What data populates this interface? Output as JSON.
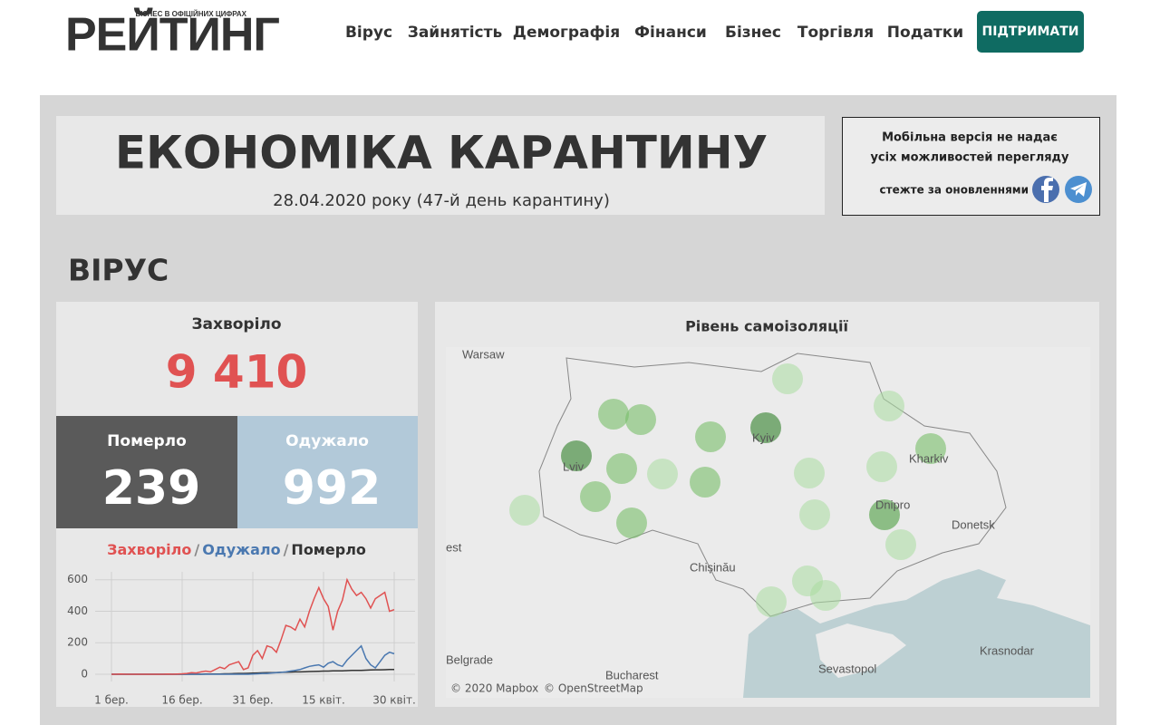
{
  "header": {
    "logo": "РЕЙТИНГ",
    "logo_tagline": "БІЗНЕС В ОФІЦІЙНИХ ЦИФРАХ",
    "nav": [
      "Вірус",
      "Зайнятість",
      "Демографія",
      "Фінанси",
      "Бізнес",
      "Торгівля",
      "Податки"
    ],
    "button": "ПІДТРИМАТИ"
  },
  "banner": {
    "title": "ЕКОНОМІКА КАРАНТИНУ",
    "subtitle": "28.04.2020 року (47-й день карантину)"
  },
  "notice": {
    "lines": [
      "Мобільна версія не надає",
      "усіх можливостей перегляду"
    ],
    "follow": "стежте за оновленнями"
  },
  "section_title": "ВІРУС",
  "stats": {
    "infected_label": "Захворіло",
    "infected": "9 410",
    "deaths_label": "Померло",
    "deaths": "239",
    "recovered_label": "Одужало",
    "recovered": "992"
  },
  "chart_data": {
    "type": "line",
    "legend_separator": "/",
    "categories": [
      "1 бер.",
      null,
      null,
      null,
      null,
      null,
      null,
      null,
      null,
      null,
      null,
      null,
      null,
      null,
      null,
      "16 бер.",
      null,
      null,
      null,
      null,
      null,
      null,
      null,
      null,
      null,
      null,
      null,
      null,
      null,
      null,
      "31 бер.",
      null,
      null,
      null,
      null,
      null,
      null,
      null,
      null,
      null,
      null,
      null,
      null,
      null,
      null,
      "15 квіт.",
      null,
      null,
      null,
      null,
      null,
      null,
      null,
      null,
      null,
      null,
      null,
      null,
      null,
      null,
      "30 квіт."
    ],
    "series": [
      {
        "name": "Захворіло",
        "color": "#e05252",
        "values": [
          0,
          0,
          1,
          0,
          0,
          0,
          0,
          0,
          0,
          0,
          0,
          0,
          1,
          0,
          2,
          3,
          5,
          10,
          8,
          15,
          20,
          15,
          30,
          45,
          35,
          60,
          70,
          80,
          30,
          40,
          120,
          150,
          100,
          180,
          170,
          140,
          220,
          310,
          300,
          280,
          350,
          300,
          400,
          480,
          550,
          480,
          430,
          280,
          400,
          470,
          600,
          540,
          500,
          520,
          480,
          420,
          480,
          500,
          520,
          400,
          410
        ]
      },
      {
        "name": "Одужало",
        "color": "#4a78b0",
        "values": [
          0,
          0,
          0,
          0,
          0,
          0,
          0,
          0,
          0,
          0,
          0,
          0,
          0,
          0,
          0,
          0,
          0,
          0,
          0,
          0,
          0,
          0,
          0,
          0,
          0,
          0,
          0,
          0,
          0,
          0,
          2,
          3,
          5,
          5,
          8,
          10,
          12,
          15,
          20,
          25,
          30,
          40,
          50,
          55,
          60,
          45,
          70,
          80,
          60,
          50,
          90,
          120,
          150,
          180,
          100,
          60,
          40,
          80,
          120,
          140,
          130
        ]
      },
      {
        "name": "Померло",
        "color": "#333333",
        "values": [
          0,
          0,
          0,
          0,
          0,
          0,
          0,
          0,
          0,
          0,
          0,
          0,
          0,
          0,
          0,
          0,
          0,
          0,
          0,
          0,
          1,
          1,
          2,
          2,
          3,
          3,
          4,
          5,
          5,
          6,
          7,
          8,
          9,
          10,
          10,
          11,
          12,
          13,
          14,
          15,
          15,
          16,
          17,
          18,
          19,
          20,
          20,
          21,
          22,
          22,
          23,
          24,
          25,
          25,
          26,
          27,
          28,
          28,
          29,
          30,
          30
        ]
      }
    ],
    "ylim": [
      0,
      650
    ],
    "yticks": [
      0,
      200,
      400,
      600
    ],
    "grid": true
  },
  "map": {
    "title": "Рівень самоізоляції",
    "places": [
      "Warsaw",
      "Lviv",
      "Kyiv",
      "Kharkiv",
      "Dnipro",
      "Donetsk",
      "Chișinău",
      "est",
      "Belgrade",
      "Bucharest",
      "Sevastopol",
      "Krasnodar"
    ],
    "credits": [
      "© 2020 Mapbox",
      "© OpenStreetMap"
    ]
  }
}
